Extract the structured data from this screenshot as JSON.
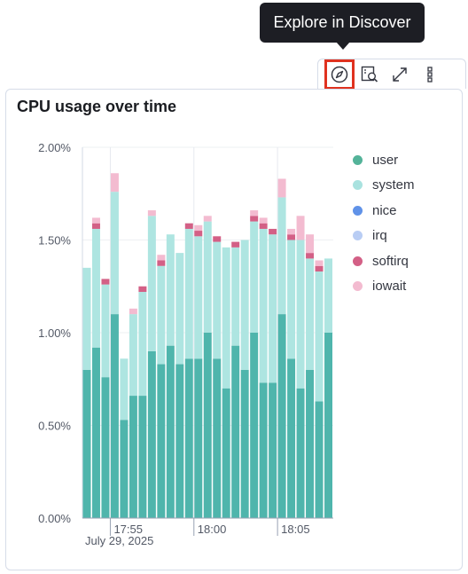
{
  "tooltip": {
    "text": "Explore in Discover"
  },
  "panel": {
    "title": "CPU usage over time"
  },
  "actions": [
    {
      "name": "explore-in-discover",
      "icon": "compass-icon"
    },
    {
      "name": "inspect",
      "icon": "inspect-icon"
    },
    {
      "name": "maximize",
      "icon": "expand-icon"
    },
    {
      "name": "options",
      "icon": "more-vertical-icon"
    }
  ],
  "legend": [
    {
      "label": "user",
      "color": "#54b399"
    },
    {
      "label": "system",
      "color": "#a9e2df"
    },
    {
      "label": "nice",
      "color": "#6092e8"
    },
    {
      "label": "irq",
      "color": "#b9cdf4"
    },
    {
      "label": "softirq",
      "color": "#d36086"
    },
    {
      "label": "iowait",
      "color": "#f3bbd0"
    }
  ],
  "chart_data": {
    "type": "bar",
    "stacked": true,
    "ylim": [
      0,
      2
    ],
    "y_ticks": [
      "0.00%",
      "0.50%",
      "1.00%",
      "1.50%",
      "2.00%"
    ],
    "x_ticks": [
      "17:55",
      "18:00",
      "18:05"
    ],
    "x_date_label": "July 29, 2025",
    "series": [
      {
        "name": "user",
        "color": "#4fb5ac",
        "values": [
          0.8,
          0.92,
          0.76,
          1.1,
          0.53,
          0.66,
          0.66,
          0.9,
          0.83,
          0.93,
          0.83,
          0.86,
          0.86,
          1.0,
          0.86,
          0.7,
          0.93,
          0.8,
          1.0,
          0.73,
          0.73,
          1.1,
          0.86,
          0.7,
          0.8,
          0.63,
          1.0
        ]
      },
      {
        "name": "system",
        "color": "#aee5e1",
        "values": [
          0.55,
          0.64,
          0.5,
          0.66,
          0.33,
          0.44,
          0.56,
          0.73,
          0.53,
          0.6,
          0.6,
          0.7,
          0.66,
          0.6,
          0.63,
          0.76,
          0.53,
          0.7,
          0.6,
          0.83,
          0.8,
          0.63,
          0.64,
          0.8,
          0.6,
          0.7,
          0.4
        ]
      },
      {
        "name": "nice",
        "color": "#6092e8",
        "values": [
          0,
          0,
          0,
          0,
          0,
          0,
          0,
          0,
          0,
          0,
          0,
          0,
          0,
          0,
          0,
          0,
          0,
          0,
          0,
          0,
          0,
          0,
          0,
          0,
          0,
          0,
          0
        ]
      },
      {
        "name": "irq",
        "color": "#b9cdf4",
        "values": [
          0,
          0,
          0,
          0,
          0,
          0,
          0,
          0,
          0,
          0,
          0,
          0,
          0,
          0,
          0,
          0,
          0,
          0,
          0,
          0,
          0,
          0,
          0,
          0,
          0,
          0,
          0
        ]
      },
      {
        "name": "softirq",
        "color": "#d36086",
        "values": [
          0,
          0.03,
          0.03,
          0,
          0,
          0,
          0.03,
          0,
          0.03,
          0,
          0,
          0.03,
          0.03,
          0,
          0.03,
          0,
          0.03,
          0,
          0.03,
          0.03,
          0.03,
          0,
          0.03,
          0,
          0.03,
          0.03,
          0
        ]
      },
      {
        "name": "iowait",
        "color": "#f3bbd0",
        "values": [
          0,
          0.03,
          0,
          0.1,
          0,
          0.03,
          0,
          0.03,
          0.03,
          0,
          0,
          0,
          0.03,
          0.03,
          0,
          0,
          0,
          0,
          0.03,
          0.03,
          0,
          0.1,
          0.03,
          0.13,
          0.1,
          0.03,
          0
        ]
      }
    ]
  }
}
